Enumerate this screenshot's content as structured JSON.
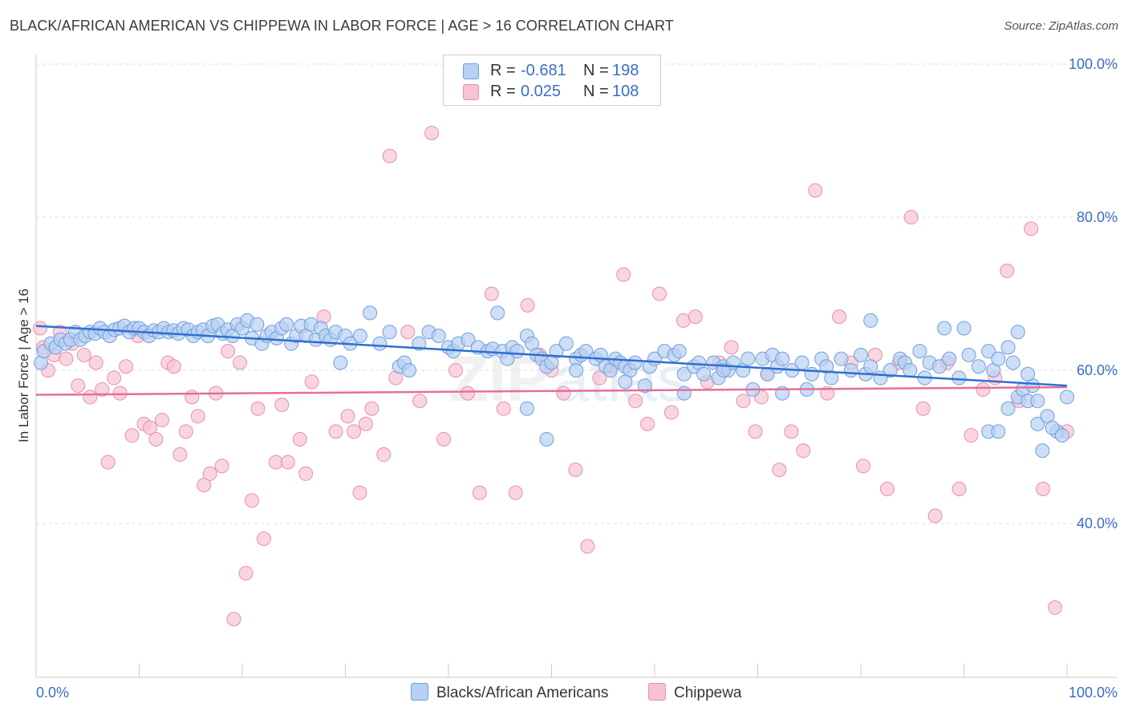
{
  "header": {
    "title": "BLACK/AFRICAN AMERICAN VS CHIPPEWA IN LABOR FORCE | AGE > 16 CORRELATION CHART",
    "source": "Source: ZipAtlas.com"
  },
  "legend": {
    "rows": [
      {
        "r_label": "R =",
        "r_value": "-0.681",
        "n_label": "N =",
        "n_value": "198"
      },
      {
        "r_label": "R =",
        "r_value": "0.025",
        "n_label": "N =",
        "n_value": "108"
      }
    ],
    "bottom": [
      "Blacks/African Americans",
      "Chippewa"
    ]
  },
  "colors": {
    "blue_fill": "#b8d0f2",
    "blue_stroke": "#6f9fdc",
    "blue_line": "#2f6fd0",
    "pink_fill": "#f7c3d4",
    "pink_stroke": "#e98fac",
    "pink_line": "#e56f98",
    "axis_text": "#3a6fc4",
    "grid": "#dcdcdc"
  },
  "chart_data": {
    "type": "scatter",
    "title": "BLACK/AFRICAN AMERICAN VS CHIPPEWA IN LABOR FORCE | AGE > 16 CORRELATION CHART",
    "xlabel": "",
    "ylabel": "In Labor Force | Age > 16",
    "xlim": [
      0,
      100
    ],
    "ylim": [
      20,
      103
    ],
    "x_tick_labels": [
      "0.0%",
      "100.0%"
    ],
    "y_ticks": [
      40,
      60,
      80,
      100
    ],
    "y_tick_labels": [
      "40.0%",
      "60.0%",
      "80.0%",
      "100.0%"
    ],
    "grid": true,
    "legend_position": "top-center",
    "series": [
      {
        "name": "Blacks/African Americans",
        "color": "#6f9fdc",
        "trend": {
          "x": [
            0,
            100
          ],
          "y": [
            65.8,
            58.0
          ]
        },
        "points": [
          [
            0.5,
            61
          ],
          [
            0.8,
            62.5
          ],
          [
            1.5,
            63.5
          ],
          [
            2,
            63
          ],
          [
            2.5,
            64
          ],
          [
            3,
            63.5
          ],
          [
            3.5,
            64
          ],
          [
            4,
            65
          ],
          [
            4.5,
            64
          ],
          [
            5,
            64.5
          ],
          [
            5.5,
            65
          ],
          [
            6,
            64.8
          ],
          [
            6.5,
            65.5
          ],
          [
            7,
            65
          ],
          [
            7.5,
            64.5
          ],
          [
            8,
            65.3
          ],
          [
            8.5,
            65.5
          ],
          [
            9,
            65.8
          ],
          [
            9.5,
            65
          ],
          [
            10,
            65.5
          ],
          [
            10.5,
            65.5
          ],
          [
            11,
            65
          ],
          [
            11.5,
            64.5
          ],
          [
            12,
            65.2
          ],
          [
            12.5,
            65
          ],
          [
            13,
            65.5
          ],
          [
            13.5,
            65
          ],
          [
            14,
            65.2
          ],
          [
            14.5,
            64.8
          ],
          [
            15,
            65.5
          ],
          [
            15.5,
            65.3
          ],
          [
            16,
            64.5
          ],
          [
            16.5,
            65
          ],
          [
            17,
            65.3
          ],
          [
            17.5,
            64.5
          ],
          [
            18,
            65.8
          ],
          [
            18.5,
            66
          ],
          [
            19,
            64.8
          ],
          [
            19.5,
            65.3
          ],
          [
            20,
            64.5
          ],
          [
            20.5,
            66
          ],
          [
            21,
            65.5
          ],
          [
            21.5,
            66.5
          ],
          [
            22,
            64.2
          ],
          [
            22.5,
            66
          ],
          [
            23,
            63.5
          ],
          [
            23.5,
            64.5
          ],
          [
            24,
            65
          ],
          [
            24.5,
            64.2
          ],
          [
            25,
            65.5
          ],
          [
            25.5,
            66
          ],
          [
            26,
            63.5
          ],
          [
            26.5,
            64.5
          ],
          [
            27,
            65.8
          ],
          [
            27.5,
            64.5
          ],
          [
            28,
            66
          ],
          [
            28.5,
            64
          ],
          [
            29,
            65.5
          ],
          [
            29.5,
            64.5
          ],
          [
            30,
            64
          ],
          [
            30.5,
            65
          ],
          [
            31,
            61
          ],
          [
            31.5,
            64.5
          ],
          [
            32,
            63.5
          ],
          [
            33,
            64.5
          ],
          [
            34,
            67.5
          ],
          [
            35,
            63.5
          ],
          [
            36,
            65
          ],
          [
            37,
            60.5
          ],
          [
            37.5,
            61
          ],
          [
            38,
            60
          ],
          [
            39,
            63.5
          ],
          [
            40,
            65
          ],
          [
            41,
            64.5
          ],
          [
            42,
            63
          ],
          [
            42.5,
            62.5
          ],
          [
            43,
            63.5
          ],
          [
            44,
            64
          ],
          [
            45,
            63
          ],
          [
            46,
            62.5
          ],
          [
            46.5,
            62.8
          ],
          [
            47,
            67.5
          ],
          [
            47.5,
            62.5
          ],
          [
            48,
            61.5
          ],
          [
            48.5,
            63
          ],
          [
            49,
            62.5
          ],
          [
            50,
            64.5
          ],
          [
            50.5,
            63.5
          ],
          [
            51,
            62
          ],
          [
            51.5,
            61.5
          ],
          [
            52,
            60.5
          ],
          [
            52.5,
            61
          ],
          [
            53,
            62.5
          ],
          [
            54,
            63.5
          ],
          [
            55,
            61.5
          ],
          [
            55.5,
            62
          ],
          [
            56,
            62.5
          ],
          [
            57,
            61.5
          ],
          [
            57.5,
            62
          ],
          [
            58,
            60.5
          ],
          [
            58.5,
            60
          ],
          [
            59,
            61.5
          ],
          [
            59.5,
            61
          ],
          [
            60,
            60.5
          ],
          [
            60.5,
            60
          ],
          [
            61,
            61
          ],
          [
            62,
            58
          ],
          [
            62.5,
            60.5
          ],
          [
            63,
            61.5
          ],
          [
            64,
            62.5
          ],
          [
            65,
            62
          ],
          [
            65.5,
            62.5
          ],
          [
            66,
            59.5
          ],
          [
            67,
            60.5
          ],
          [
            67.5,
            61
          ],
          [
            68,
            59.5
          ],
          [
            69,
            61
          ],
          [
            69.5,
            59
          ],
          [
            70,
            60.5
          ],
          [
            70.5,
            60
          ],
          [
            71,
            61
          ],
          [
            72,
            60
          ],
          [
            72.5,
            61.5
          ],
          [
            73,
            57.5
          ],
          [
            74,
            61.5
          ],
          [
            74.5,
            59.5
          ],
          [
            75,
            62
          ],
          [
            75.5,
            60.5
          ],
          [
            76,
            61.5
          ],
          [
            77,
            60
          ],
          [
            78,
            61
          ],
          [
            78.5,
            57.5
          ],
          [
            79,
            59.5
          ],
          [
            80,
            61.5
          ],
          [
            80.5,
            60.5
          ],
          [
            81,
            59
          ],
          [
            82,
            61.5
          ],
          [
            83,
            60
          ],
          [
            84,
            62
          ],
          [
            84.5,
            59.5
          ],
          [
            85,
            60.5
          ],
          [
            86,
            59
          ],
          [
            87,
            60
          ],
          [
            88,
            61.5
          ],
          [
            88.5,
            61
          ],
          [
            89,
            60
          ],
          [
            90,
            62.5
          ],
          [
            90.5,
            59
          ],
          [
            91,
            61
          ],
          [
            92,
            60.5
          ],
          [
            93,
            61.5
          ],
          [
            94,
            59
          ],
          [
            95,
            62
          ],
          [
            96,
            60.5
          ],
          [
            97,
            62.5
          ],
          [
            97.5,
            60
          ],
          [
            98,
            61.5
          ],
          [
            99,
            63
          ],
          [
            99.5,
            61
          ],
          [
            100,
            56.5
          ],
          [
            92.5,
            65.5
          ],
          [
            94.5,
            65.5
          ],
          [
            97,
            52
          ],
          [
            99,
            55
          ],
          [
            100.5,
            57.5
          ],
          [
            101,
            56
          ],
          [
            101.5,
            58
          ],
          [
            102,
            53
          ],
          [
            102.5,
            49.5
          ],
          [
            103,
            54
          ],
          [
            104,
            52
          ],
          [
            103.5,
            52.5
          ],
          [
            104.5,
            51.5
          ],
          [
            105,
            56.5
          ],
          [
            101,
            59.5
          ],
          [
            102,
            56
          ],
          [
            100,
            65
          ],
          [
            98,
            52
          ],
          [
            85,
            66.5
          ],
          [
            76,
            57
          ],
          [
            70,
            60
          ],
          [
            66,
            57
          ],
          [
            60,
            58.5
          ],
          [
            55,
            60
          ],
          [
            50,
            55
          ],
          [
            52,
            51
          ]
        ]
      },
      {
        "name": "Chippewa",
        "color": "#e98fac",
        "trend": {
          "x": [
            0,
            100
          ],
          "y": [
            56.8,
            57.8
          ]
        },
        "points": [
          [
            0.3,
            65.5
          ],
          [
            0.6,
            63
          ],
          [
            1,
            60
          ],
          [
            1.5,
            62
          ],
          [
            2,
            65
          ],
          [
            2.5,
            61.5
          ],
          [
            3,
            63.5
          ],
          [
            3.5,
            58
          ],
          [
            4,
            62
          ],
          [
            4.5,
            56.5
          ],
          [
            5,
            61
          ],
          [
            5.5,
            57.5
          ],
          [
            6,
            48
          ],
          [
            6.5,
            59
          ],
          [
            7,
            57
          ],
          [
            7.5,
            60.5
          ],
          [
            8,
            51.5
          ],
          [
            8.5,
            64.5
          ],
          [
            9,
            53
          ],
          [
            9.5,
            52.5
          ],
          [
            10,
            51
          ],
          [
            10.5,
            53.5
          ],
          [
            11,
            61
          ],
          [
            11.5,
            60.5
          ],
          [
            12,
            49
          ],
          [
            12.5,
            52
          ],
          [
            13,
            56.5
          ],
          [
            13.5,
            54
          ],
          [
            14,
            45
          ],
          [
            14.5,
            46.5
          ],
          [
            15,
            57
          ],
          [
            15.5,
            47.5
          ],
          [
            16,
            62.5
          ],
          [
            16.5,
            27.5
          ],
          [
            17,
            61
          ],
          [
            17.5,
            33.5
          ],
          [
            18,
            43
          ],
          [
            18.5,
            55
          ],
          [
            19,
            38
          ],
          [
            20,
            48
          ],
          [
            20.5,
            55.5
          ],
          [
            21,
            48
          ],
          [
            22,
            51
          ],
          [
            22.5,
            46.5
          ],
          [
            23,
            58.5
          ],
          [
            24,
            67
          ],
          [
            25,
            52
          ],
          [
            26,
            54
          ],
          [
            26.5,
            52
          ],
          [
            27,
            44
          ],
          [
            27.5,
            53
          ],
          [
            28,
            55
          ],
          [
            29,
            49
          ],
          [
            29.5,
            88
          ],
          [
            30,
            59
          ],
          [
            31,
            65
          ],
          [
            32,
            56
          ],
          [
            33,
            91
          ],
          [
            34,
            51
          ],
          [
            35,
            60
          ],
          [
            36,
            57
          ],
          [
            37,
            44
          ],
          [
            38,
            70
          ],
          [
            39,
            55
          ],
          [
            40,
            44
          ],
          [
            41,
            68.5
          ],
          [
            42,
            62
          ],
          [
            43,
            60
          ],
          [
            44,
            57
          ],
          [
            45,
            47
          ],
          [
            46,
            37
          ],
          [
            47,
            59
          ],
          [
            48,
            60.5
          ],
          [
            49,
            72.5
          ],
          [
            50,
            56
          ],
          [
            51,
            53
          ],
          [
            52,
            70
          ],
          [
            53,
            54.5
          ],
          [
            54,
            66.5
          ],
          [
            55,
            67
          ],
          [
            56,
            58.5
          ],
          [
            57,
            61
          ],
          [
            58,
            63
          ],
          [
            59,
            56
          ],
          [
            60,
            52
          ],
          [
            60.5,
            56.5
          ],
          [
            61,
            59.5
          ],
          [
            62,
            47
          ],
          [
            63,
            52
          ],
          [
            64,
            49.5
          ],
          [
            65,
            83.5
          ],
          [
            66,
            57
          ],
          [
            67,
            67
          ],
          [
            68,
            61
          ],
          [
            69,
            47.5
          ],
          [
            70,
            62
          ],
          [
            71,
            44.5
          ],
          [
            72,
            61
          ],
          [
            73,
            80
          ],
          [
            74,
            55
          ],
          [
            75,
            41
          ],
          [
            76,
            61
          ],
          [
            77,
            44.5
          ],
          [
            78,
            51.5
          ],
          [
            79,
            57.5
          ],
          [
            80,
            59
          ],
          [
            81,
            73
          ],
          [
            82,
            56
          ],
          [
            83,
            78.5
          ],
          [
            84,
            44.5
          ],
          [
            85,
            29
          ],
          [
            86,
            52
          ]
        ]
      }
    ]
  }
}
